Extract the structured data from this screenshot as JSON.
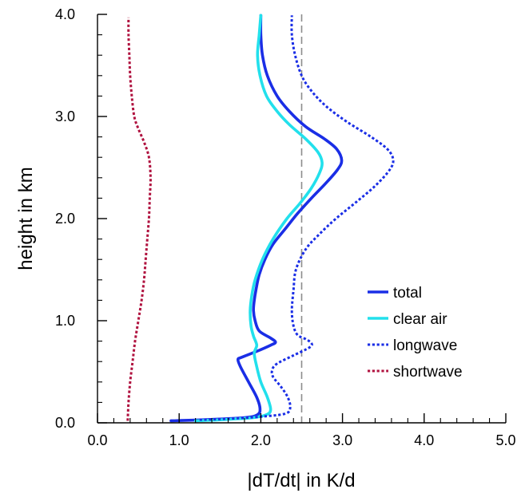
{
  "chart_data": {
    "type": "line",
    "title": "",
    "xlabel": "|dT/dt| in K/d",
    "ylabel": "height in km",
    "xlim": [
      0,
      5
    ],
    "ylim": [
      0,
      4
    ],
    "x_ticks": [
      "0.0",
      "1.0",
      "2.0",
      "3.0",
      "4.0",
      "5.0"
    ],
    "y_ticks": [
      "0.0",
      "1.0",
      "2.0",
      "3.0",
      "4.0"
    ],
    "reference_line": {
      "x": 2.5,
      "style": "dashed",
      "color": "#8c8c8c"
    },
    "legend_position": "center-right",
    "series": [
      {
        "name": "total",
        "color": "#1a2ee6",
        "style": "solid",
        "points": [
          [
            0.9,
            0.02
          ],
          [
            1.3,
            0.03
          ],
          [
            1.8,
            0.05
          ],
          [
            1.96,
            0.08
          ],
          [
            1.99,
            0.14
          ],
          [
            1.95,
            0.25
          ],
          [
            1.85,
            0.4
          ],
          [
            1.75,
            0.55
          ],
          [
            1.72,
            0.62
          ],
          [
            1.76,
            0.64
          ],
          [
            1.95,
            0.7
          ],
          [
            2.12,
            0.76
          ],
          [
            2.18,
            0.79
          ],
          [
            2.12,
            0.83
          ],
          [
            1.98,
            0.9
          ],
          [
            1.93,
            1.0
          ],
          [
            1.91,
            1.1
          ],
          [
            1.92,
            1.2
          ],
          [
            1.94,
            1.3
          ],
          [
            1.98,
            1.45
          ],
          [
            2.05,
            1.6
          ],
          [
            2.15,
            1.75
          ],
          [
            2.3,
            1.9
          ],
          [
            2.45,
            2.05
          ],
          [
            2.62,
            2.2
          ],
          [
            2.8,
            2.35
          ],
          [
            2.94,
            2.48
          ],
          [
            2.99,
            2.57
          ],
          [
            2.93,
            2.68
          ],
          [
            2.78,
            2.78
          ],
          [
            2.55,
            2.9
          ],
          [
            2.35,
            3.05
          ],
          [
            2.2,
            3.2
          ],
          [
            2.08,
            3.4
          ],
          [
            2.02,
            3.6
          ],
          [
            2.0,
            3.8
          ],
          [
            2.0,
            3.99
          ]
        ]
      },
      {
        "name": "clear air",
        "color": "#22e0ec",
        "style": "solid",
        "points": [
          [
            1.2,
            0.02
          ],
          [
            1.5,
            0.03
          ],
          [
            1.9,
            0.05
          ],
          [
            2.07,
            0.08
          ],
          [
            2.12,
            0.13
          ],
          [
            2.08,
            0.25
          ],
          [
            2.0,
            0.4
          ],
          [
            1.95,
            0.55
          ],
          [
            1.92,
            0.68
          ],
          [
            1.95,
            0.76
          ],
          [
            1.91,
            0.85
          ],
          [
            1.88,
            0.95
          ],
          [
            1.87,
            1.1
          ],
          [
            1.89,
            1.25
          ],
          [
            1.93,
            1.4
          ],
          [
            2.02,
            1.6
          ],
          [
            2.15,
            1.8
          ],
          [
            2.32,
            2.0
          ],
          [
            2.48,
            2.15
          ],
          [
            2.62,
            2.3
          ],
          [
            2.72,
            2.45
          ],
          [
            2.75,
            2.55
          ],
          [
            2.7,
            2.65
          ],
          [
            2.55,
            2.78
          ],
          [
            2.35,
            2.92
          ],
          [
            2.2,
            3.05
          ],
          [
            2.07,
            3.2
          ],
          [
            1.99,
            3.4
          ],
          [
            1.96,
            3.6
          ],
          [
            1.98,
            3.8
          ],
          [
            2.0,
            3.99
          ]
        ]
      },
      {
        "name": "longwave",
        "color": "#1a2ee6",
        "style": "dotted",
        "points": [
          [
            1.25,
            0.03
          ],
          [
            1.6,
            0.04
          ],
          [
            2.0,
            0.06
          ],
          [
            2.3,
            0.09
          ],
          [
            2.36,
            0.15
          ],
          [
            2.33,
            0.25
          ],
          [
            2.25,
            0.35
          ],
          [
            2.15,
            0.45
          ],
          [
            2.14,
            0.52
          ],
          [
            2.2,
            0.58
          ],
          [
            2.4,
            0.66
          ],
          [
            2.6,
            0.74
          ],
          [
            2.62,
            0.78
          ],
          [
            2.55,
            0.82
          ],
          [
            2.45,
            0.86
          ],
          [
            2.4,
            0.95
          ],
          [
            2.38,
            1.1
          ],
          [
            2.4,
            1.3
          ],
          [
            2.43,
            1.5
          ],
          [
            2.55,
            1.7
          ],
          [
            2.72,
            1.85
          ],
          [
            2.92,
            2.0
          ],
          [
            3.15,
            2.15
          ],
          [
            3.4,
            2.32
          ],
          [
            3.58,
            2.48
          ],
          [
            3.62,
            2.58
          ],
          [
            3.55,
            2.68
          ],
          [
            3.35,
            2.8
          ],
          [
            3.05,
            2.95
          ],
          [
            2.8,
            3.1
          ],
          [
            2.62,
            3.25
          ],
          [
            2.5,
            3.4
          ],
          [
            2.42,
            3.6
          ],
          [
            2.38,
            3.8
          ],
          [
            2.38,
            3.99
          ]
        ]
      },
      {
        "name": "shortwave",
        "color": "#b0123f",
        "style": "dotted",
        "points": [
          [
            0.37,
            0.02
          ],
          [
            0.38,
            0.2
          ],
          [
            0.4,
            0.4
          ],
          [
            0.43,
            0.6
          ],
          [
            0.46,
            0.8
          ],
          [
            0.5,
            1.0
          ],
          [
            0.54,
            1.2
          ],
          [
            0.57,
            1.4
          ],
          [
            0.59,
            1.6
          ],
          [
            0.61,
            1.8
          ],
          [
            0.63,
            2.0
          ],
          [
            0.64,
            2.2
          ],
          [
            0.65,
            2.4
          ],
          [
            0.63,
            2.6
          ],
          [
            0.57,
            2.75
          ],
          [
            0.5,
            2.88
          ],
          [
            0.45,
            3.0
          ],
          [
            0.42,
            3.2
          ],
          [
            0.4,
            3.4
          ],
          [
            0.39,
            3.6
          ],
          [
            0.38,
            3.8
          ],
          [
            0.38,
            3.97
          ]
        ]
      }
    ]
  }
}
